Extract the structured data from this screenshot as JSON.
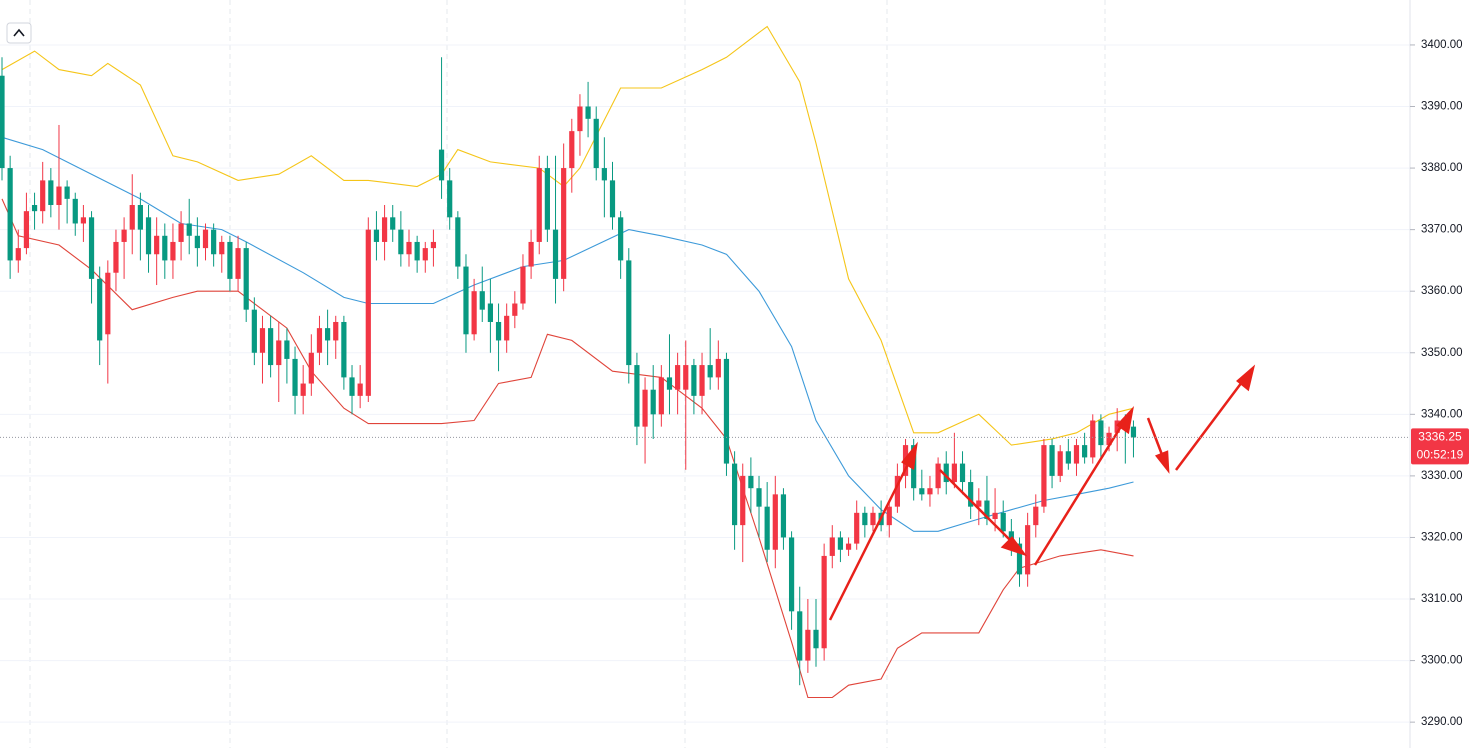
{
  "chart_data": {
    "type": "candlestick",
    "candles": [
      [
        3395,
        3398,
        3378,
        3380
      ],
      [
        3380,
        3382,
        3362,
        3365
      ],
      [
        3365,
        3370,
        3363,
        3367
      ],
      [
        3367,
        3376,
        3366,
        3373
      ],
      [
        3374,
        3376,
        3370,
        3373
      ],
      [
        3373,
        3381,
        3371,
        3378
      ],
      [
        3378,
        3380,
        3372,
        3374
      ],
      [
        3374,
        3387,
        3370,
        3377
      ],
      [
        3377,
        3378,
        3371,
        3375
      ],
      [
        3375,
        3376,
        3369,
        3371
      ],
      [
        3371,
        3374,
        3368,
        3372
      ],
      [
        3372,
        3373,
        3358,
        3362
      ],
      [
        3362,
        3364,
        3348,
        3352
      ],
      [
        3353,
        3365,
        3345,
        3363
      ],
      [
        3363,
        3370,
        3360,
        3368
      ],
      [
        3368,
        3372,
        3362,
        3370
      ],
      [
        3370,
        3379,
        3366,
        3374
      ],
      [
        3374,
        3376,
        3365,
        3370
      ],
      [
        3372,
        3374,
        3363,
        3366
      ],
      [
        3366,
        3372,
        3361,
        3369
      ],
      [
        3369,
        3371,
        3362,
        3365
      ],
      [
        3365,
        3371,
        3362,
        3368
      ],
      [
        3368,
        3373,
        3365,
        3371
      ],
      [
        3371,
        3375,
        3366,
        3369
      ],
      [
        3369,
        3372,
        3364,
        3367
      ],
      [
        3367,
        3371,
        3365,
        3370
      ],
      [
        3370,
        3371,
        3364,
        3366
      ],
      [
        3366,
        3369,
        3363,
        3368
      ],
      [
        3368,
        3369,
        3360,
        3362
      ],
      [
        3362,
        3369,
        3360,
        3367
      ],
      [
        3367,
        3368,
        3355,
        3357
      ],
      [
        3357,
        3359,
        3348,
        3350
      ],
      [
        3350,
        3356,
        3345,
        3354
      ],
      [
        3354,
        3356,
        3346,
        3348
      ],
      [
        3348,
        3355,
        3342,
        3352
      ],
      [
        3352,
        3354,
        3345,
        3349
      ],
      [
        3349,
        3351,
        3340,
        3343
      ],
      [
        3343,
        3348,
        3340,
        3345
      ],
      [
        3345,
        3353,
        3343,
        3350
      ],
      [
        3350,
        3356,
        3348,
        3354
      ],
      [
        3354,
        3357,
        3348,
        3352
      ],
      [
        3352,
        3356,
        3349,
        3355
      ],
      [
        3355,
        3356,
        3344,
        3346
      ],
      [
        3346,
        3348,
        3340,
        3343
      ],
      [
        3343,
        3348,
        3341,
        3345
      ],
      [
        3343,
        3372,
        3342,
        3370
      ],
      [
        3370,
        3373,
        3365,
        3368
      ],
      [
        3368,
        3374,
        3365,
        3372
      ],
      [
        3372,
        3374,
        3368,
        3370
      ],
      [
        3370,
        3373,
        3364,
        3366
      ],
      [
        3366,
        3370,
        3364,
        3368
      ],
      [
        3368,
        3369,
        3363,
        3365
      ],
      [
        3365,
        3368,
        3363,
        3367
      ],
      [
        3367,
        3370,
        3364,
        3368
      ],
      [
        3383,
        3398,
        3375,
        3378
      ],
      [
        3378,
        3380,
        3370,
        3372
      ],
      [
        3372,
        3373,
        3362,
        3364
      ],
      [
        3364,
        3366,
        3350,
        3353
      ],
      [
        3353,
        3362,
        3352,
        3360
      ],
      [
        3360,
        3364,
        3355,
        3357
      ],
      [
        3358,
        3362,
        3350,
        3355
      ],
      [
        3355,
        3358,
        3347,
        3352
      ],
      [
        3352,
        3358,
        3350,
        3356
      ],
      [
        3356,
        3360,
        3354,
        3358
      ],
      [
        3358,
        3366,
        3357,
        3364
      ],
      [
        3364,
        3370,
        3362,
        3368
      ],
      [
        3368,
        3382,
        3366,
        3380
      ],
      [
        3380,
        3382,
        3368,
        3370
      ],
      [
        3370,
        3382,
        3358,
        3362
      ],
      [
        3362,
        3384,
        3360,
        3380
      ],
      [
        3380,
        3388,
        3376,
        3386
      ],
      [
        3386,
        3392,
        3382,
        3390
      ],
      [
        3390,
        3394,
        3385,
        3388
      ],
      [
        3388,
        3390,
        3378,
        3380
      ],
      [
        3380,
        3385,
        3372,
        3378
      ],
      [
        3378,
        3381,
        3370,
        3372
      ],
      [
        3372,
        3373,
        3362,
        3365
      ],
      [
        3365,
        3367,
        3345,
        3348
      ],
      [
        3348,
        3350,
        3335,
        3338
      ],
      [
        3338,
        3346,
        3332,
        3344
      ],
      [
        3344,
        3348,
        3336,
        3340
      ],
      [
        3340,
        3348,
        3338,
        3346
      ],
      [
        3346,
        3353,
        3340,
        3344
      ],
      [
        3344,
        3350,
        3340,
        3348
      ],
      [
        3344,
        3352,
        3331,
        3348
      ],
      [
        3348,
        3349,
        3340,
        3343
      ],
      [
        3343,
        3350,
        3340,
        3348
      ],
      [
        3348,
        3354,
        3344,
        3346
      ],
      [
        3346,
        3352,
        3344,
        3349
      ],
      [
        3349,
        3350,
        3330,
        3332
      ],
      [
        3332,
        3334,
        3318,
        3322
      ],
      [
        3322,
        3332,
        3316,
        3330
      ],
      [
        3330,
        3333,
        3324,
        3328
      ],
      [
        3328,
        3330,
        3320,
        3325
      ],
      [
        3325,
        3329,
        3316,
        3318
      ],
      [
        3318,
        3330,
        3315,
        3327
      ],
      [
        3327,
        3328,
        3318,
        3320
      ],
      [
        3320,
        3321,
        3305,
        3308
      ],
      [
        3308,
        3312,
        3296,
        3300
      ],
      [
        3300,
        3310,
        3298,
        3305
      ],
      [
        3305,
        3310,
        3299,
        3302
      ],
      [
        3302,
        3319,
        3300,
        3317
      ],
      [
        3317,
        3322,
        3315,
        3320
      ],
      [
        3320,
        3321,
        3316,
        3318
      ],
      [
        3318,
        3320,
        3317,
        3319
      ],
      [
        3319,
        3326,
        3318,
        3324
      ],
      [
        3324,
        3325,
        3320,
        3322
      ],
      [
        3322,
        3325,
        3321,
        3324
      ],
      [
        3324,
        3326,
        3321,
        3322
      ],
      [
        3322,
        3326,
        3320,
        3325
      ],
      [
        3325,
        3332,
        3324,
        3330
      ],
      [
        3330,
        3336,
        3328,
        3335
      ],
      [
        3335,
        3336,
        3326,
        3328
      ],
      [
        3328,
        3331,
        3326,
        3327
      ],
      [
        3327,
        3330,
        3325,
        3328
      ],
      [
        3328,
        3333,
        3327,
        3332
      ],
      [
        3332,
        3334,
        3327,
        3329
      ],
      [
        3329,
        3337,
        3328,
        3332
      ],
      [
        3332,
        3334,
        3327,
        3329
      ],
      [
        3329,
        3331,
        3323,
        3325
      ],
      [
        3325,
        3328,
        3322,
        3326
      ],
      [
        3326,
        3330,
        3322,
        3323
      ],
      [
        3323,
        3328,
        3321,
        3324
      ],
      [
        3324,
        3326,
        3320,
        3321
      ],
      [
        3321,
        3323,
        3317,
        3319
      ],
      [
        3319,
        3320,
        3312,
        3314
      ],
      [
        3314,
        3324,
        3312,
        3322
      ],
      [
        3322,
        3327,
        3320,
        3325
      ],
      [
        3325,
        3336,
        3324,
        3335
      ],
      [
        3335,
        3336,
        3328,
        3330
      ],
      [
        3330,
        3335,
        3329,
        3334
      ],
      [
        3334,
        3336,
        3331,
        3332
      ],
      [
        3332,
        3336,
        3330,
        3335
      ],
      [
        3335,
        3337,
        3332,
        3333
      ],
      [
        3333,
        3340,
        3332,
        3339
      ],
      [
        3339,
        3340,
        3333,
        3335
      ],
      [
        3335,
        3338,
        3334,
        3337
      ],
      [
        3337,
        3341,
        3334,
        3339
      ],
      [
        3339,
        3340,
        3332,
        3338
      ],
      [
        3338,
        3339,
        3333,
        3336.25
      ]
    ],
    "up_color": "#f23645",
    "down_color": "#089981",
    "bands": [
      {
        "color": "#f5c518",
        "x": [
          0,
          4,
          7,
          11,
          13,
          17,
          21,
          24,
          29,
          34,
          38,
          42,
          45,
          51,
          54,
          56,
          60,
          66,
          69,
          71,
          76,
          81,
          86,
          89,
          93,
          94,
          98,
          100,
          104,
          108,
          112,
          115,
          120,
          124,
          129,
          132,
          136,
          139
        ],
        "values": [
          3396,
          3399,
          3396,
          3395,
          3397,
          3393.5,
          3382,
          3381,
          3378,
          3379,
          3382,
          3378,
          3378,
          3377,
          3379,
          3383,
          3381,
          3380,
          3377,
          3380,
          3393,
          3393,
          3396,
          3398,
          3402,
          3403,
          3394,
          3384,
          3362,
          3352,
          3337,
          3337,
          3340,
          3335,
          3336,
          3337,
          3340,
          3341
        ]
      },
      {
        "color": "#3d9ad9",
        "x": [
          0,
          5,
          11,
          17,
          22,
          27,
          30,
          37,
          42,
          45,
          53,
          58,
          64,
          69,
          73,
          77,
          81,
          86,
          89,
          93,
          97,
          100,
          104,
          108,
          112,
          115,
          120,
          124,
          128,
          132,
          136,
          139
        ],
        "values": [
          3385,
          3383,
          3379,
          3375,
          3371,
          3370,
          3368,
          3363,
          3359,
          3358,
          3358,
          3361,
          3364,
          3365,
          3367.5,
          3370,
          3369,
          3367.5,
          3366,
          3360,
          3351,
          3339,
          3330,
          3324.5,
          3321,
          3321,
          3323,
          3324.5,
          3326,
          3327,
          3328,
          3329
        ]
      },
      {
        "color": "#e0443a",
        "x": [
          0,
          2,
          7,
          11,
          16,
          21,
          24,
          29,
          32,
          35,
          38,
          42,
          45,
          54,
          58,
          61,
          65,
          67,
          70,
          75,
          81,
          86,
          89,
          93,
          97,
          99,
          102,
          104,
          108,
          110,
          113,
          120,
          123,
          125,
          130,
          135,
          139
        ],
        "values": [
          3375,
          3369,
          3367.5,
          3363.5,
          3357,
          3359,
          3360,
          3360,
          3357,
          3354,
          3347,
          3341,
          3338.5,
          3338.5,
          3339,
          3345,
          3346,
          3353,
          3352,
          3347,
          3346,
          3341,
          3336,
          3320,
          3303,
          3294,
          3294,
          3296,
          3297,
          3302,
          3304.5,
          3304.5,
          3311.5,
          3315,
          3317,
          3318,
          3317
        ]
      }
    ],
    "ylim": [
      3285.8,
      3407.3
    ],
    "yticks": [
      {
        "value": 3290,
        "label": "3290.00"
      },
      {
        "value": 3300,
        "label": "3300.00"
      },
      {
        "value": 3310,
        "label": "3310.00"
      },
      {
        "value": 3320,
        "label": "3320.00"
      },
      {
        "value": 3330,
        "label": "3330.00"
      },
      {
        "value": 3340,
        "label": "3340.00"
      },
      {
        "value": 3350,
        "label": "3350.00"
      },
      {
        "value": 3360,
        "label": "3360.00"
      },
      {
        "value": 3370,
        "label": "3370.00"
      },
      {
        "value": 3380,
        "label": "3380.00"
      },
      {
        "value": 3390,
        "label": "3390.00"
      },
      {
        "value": 3400,
        "label": "3400.00"
      }
    ],
    "grid": true,
    "last_price": 3336.25,
    "countdown": "00:52:19",
    "price_label_color": "#f23645"
  }
}
